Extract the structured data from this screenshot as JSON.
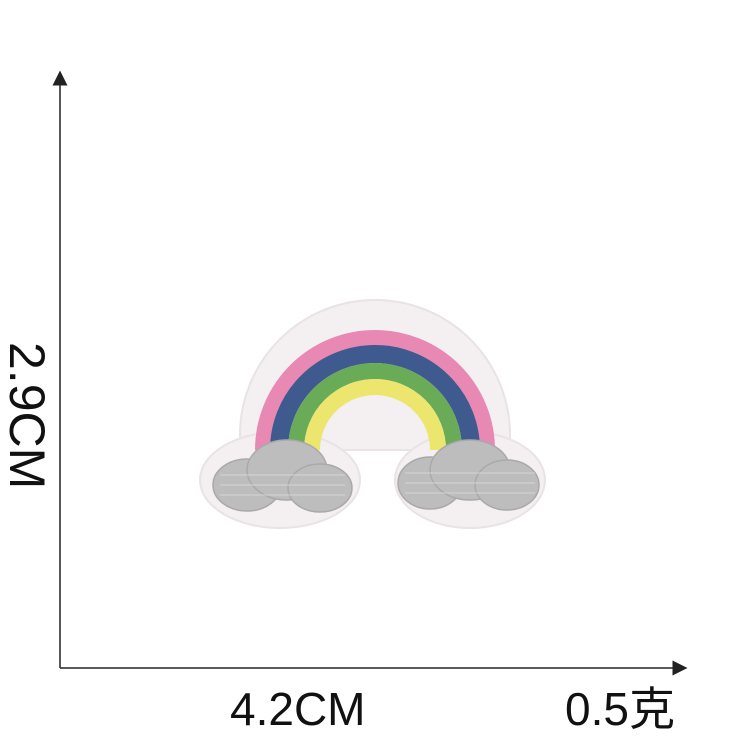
{
  "measurements": {
    "height": "2.9CM",
    "width": "4.2CM",
    "weight": "0.5克"
  },
  "patch": {
    "subject": "rainbow-with-clouds",
    "colors": {
      "border": "#f7f4f5",
      "pink": "#e889b4",
      "navy": "#3e5a8e",
      "green": "#6aab57",
      "yellow": "#ece66f",
      "cloud": "#bdbdbd"
    }
  },
  "axes": {
    "color": "#222222"
  }
}
